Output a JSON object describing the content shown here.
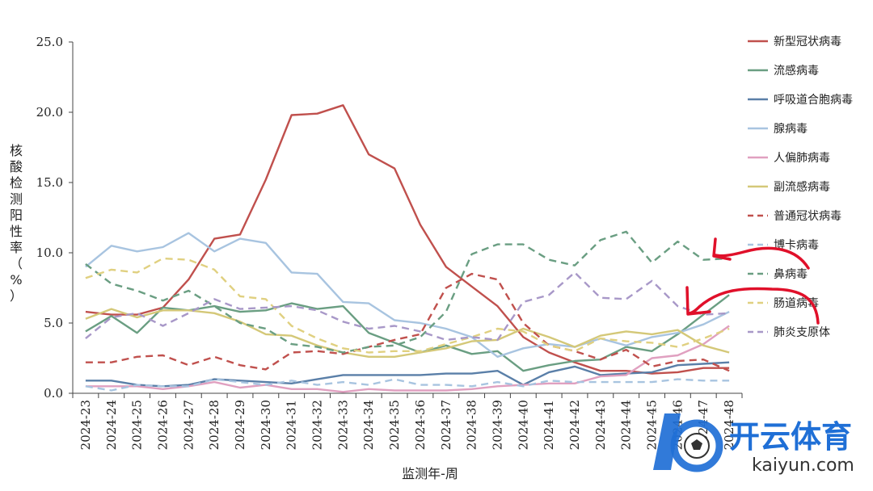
{
  "chart_data": {
    "type": "line",
    "title": "",
    "xlabel": "监测年-周",
    "ylabel": "核酸检测阳性率（%）",
    "ylim": [
      0,
      25
    ],
    "yticks": [
      "0.0",
      "5.0",
      "10.0",
      "15.0",
      "20.0",
      "25.0"
    ],
    "categories": [
      "2024-23",
      "2024-24",
      "2024-25",
      "2024-26",
      "2024-27",
      "2024-28",
      "2024-29",
      "2024-30",
      "2024-31",
      "2024-32",
      "2024-33",
      "2024-34",
      "2024-35",
      "2024-36",
      "2024-37",
      "2024-38",
      "2024-39",
      "2024-40",
      "2024-41",
      "2024-42",
      "2024-43",
      "2024-44",
      "2024-45",
      "2024-46",
      "2024-47",
      "2024-48"
    ],
    "grid": false,
    "legend_position": "right",
    "series": [
      {
        "name": "新型冠状病毒",
        "color": "#c0504d",
        "dash": "solid",
        "values": [
          5.8,
          5.6,
          5.6,
          6.1,
          8.1,
          11.0,
          11.3,
          15.2,
          19.8,
          19.9,
          20.5,
          17.0,
          16.0,
          12.0,
          9.0,
          7.6,
          6.2,
          4.0,
          2.9,
          2.2,
          1.6,
          1.6,
          1.4,
          1.5,
          1.8,
          1.8
        ]
      },
      {
        "name": "流感病毒",
        "color": "#6a9e82",
        "dash": "solid",
        "values": [
          4.4,
          5.5,
          4.3,
          6.1,
          5.9,
          6.2,
          5.8,
          5.9,
          6.4,
          6.0,
          6.2,
          4.3,
          3.6,
          2.9,
          3.4,
          2.8,
          3.0,
          1.6,
          2.0,
          2.3,
          2.4,
          3.3,
          3.0,
          4.2,
          5.6,
          7.0
        ]
      },
      {
        "name": "呼吸道合胞病毒",
        "color": "#5a7fa8",
        "dash": "solid",
        "values": [
          0.9,
          0.9,
          0.6,
          0.5,
          0.6,
          1.0,
          0.9,
          0.8,
          0.7,
          1.0,
          1.3,
          1.3,
          1.3,
          1.3,
          1.4,
          1.4,
          1.6,
          0.6,
          1.5,
          1.9,
          1.3,
          1.4,
          1.5,
          2.0,
          2.1,
          2.2
        ]
      },
      {
        "name": "腺病毒",
        "color": "#a8c4e0",
        "dash": "solid",
        "values": [
          9.0,
          10.5,
          10.1,
          10.4,
          11.4,
          10.1,
          11.0,
          10.7,
          8.6,
          8.5,
          6.5,
          6.4,
          5.2,
          5.0,
          4.6,
          4.0,
          2.6,
          3.2,
          3.5,
          3.3,
          3.9,
          3.4,
          4.0,
          4.3,
          4.9,
          5.8
        ]
      },
      {
        "name": "人偏肺病毒",
        "color": "#e0a0c0",
        "dash": "solid",
        "values": [
          0.5,
          0.5,
          0.5,
          0.3,
          0.5,
          0.8,
          0.4,
          0.6,
          0.3,
          0.3,
          0.1,
          0.3,
          0.2,
          0.2,
          0.2,
          0.3,
          0.5,
          0.6,
          0.7,
          0.7,
          1.2,
          1.3,
          2.5,
          2.7,
          3.5,
          4.8
        ]
      },
      {
        "name": "副流感病毒",
        "color": "#d4c878",
        "dash": "solid",
        "values": [
          5.3,
          6.0,
          5.4,
          5.9,
          5.9,
          5.7,
          5.1,
          4.2,
          4.1,
          3.4,
          2.9,
          2.6,
          2.6,
          2.9,
          3.2,
          3.7,
          3.8,
          4.6,
          4.0,
          3.3,
          4.1,
          4.4,
          4.2,
          4.5,
          3.4,
          2.9
        ]
      },
      {
        "name": "普通冠状病毒",
        "color": "#c0504d",
        "dash": "dashed",
        "values": [
          2.2,
          2.2,
          2.6,
          2.7,
          2.0,
          2.6,
          2.0,
          1.7,
          2.9,
          3.0,
          2.8,
          3.3,
          3.8,
          4.2,
          7.5,
          8.5,
          8.1,
          5.0,
          3.4,
          3.0,
          2.4,
          3.1,
          1.9,
          2.3,
          2.4,
          1.6
        ]
      },
      {
        "name": "博卡病毒",
        "color": "#a8c4e0",
        "dash": "dashed",
        "values": [
          0.5,
          0.2,
          0.6,
          0.5,
          0.5,
          1.0,
          0.8,
          0.6,
          0.9,
          0.6,
          0.8,
          0.6,
          1.0,
          0.6,
          0.6,
          0.5,
          0.8,
          0.5,
          0.9,
          0.8,
          0.8,
          0.8,
          0.8,
          1.0,
          0.9,
          0.9
        ]
      },
      {
        "name": "鼻病毒",
        "color": "#6a9e82",
        "dash": "dashed",
        "values": [
          9.2,
          7.8,
          7.3,
          6.6,
          7.3,
          6.2,
          5.0,
          4.6,
          3.5,
          3.3,
          2.9,
          3.3,
          3.4,
          4.0,
          5.8,
          9.9,
          10.6,
          10.6,
          9.5,
          9.1,
          10.9,
          11.5,
          9.3,
          10.8,
          9.5,
          9.6
        ]
      },
      {
        "name": "肠道病毒",
        "color": "#e0d080",
        "dash": "dashed",
        "values": [
          8.2,
          8.8,
          8.6,
          9.6,
          9.5,
          8.8,
          6.9,
          6.7,
          4.8,
          3.9,
          3.2,
          2.9,
          3.0,
          3.0,
          3.5,
          4.0,
          4.6,
          4.4,
          3.4,
          3.0,
          3.9,
          3.7,
          3.6,
          3.3,
          3.9,
          4.6
        ]
      },
      {
        "name": "肺炎支原体",
        "color": "#a898c8",
        "dash": "dashed",
        "values": [
          3.9,
          5.4,
          5.7,
          4.8,
          5.7,
          6.7,
          6.0,
          6.1,
          6.2,
          5.9,
          5.1,
          4.6,
          4.8,
          4.4,
          3.8,
          4.0,
          3.8,
          6.5,
          7.0,
          8.6,
          6.8,
          6.7,
          8.0,
          6.2,
          5.6,
          5.7
        ]
      }
    ],
    "annotations": [
      {
        "type": "arrow",
        "color": "#e0102a",
        "target": "鼻病毒"
      },
      {
        "type": "arrow",
        "color": "#e0102a",
        "target": "肺炎支原体"
      }
    ]
  },
  "watermark": {
    "cn": "开云体育",
    "en": "kaiyun.com",
    "color": "#1f6fd6"
  }
}
